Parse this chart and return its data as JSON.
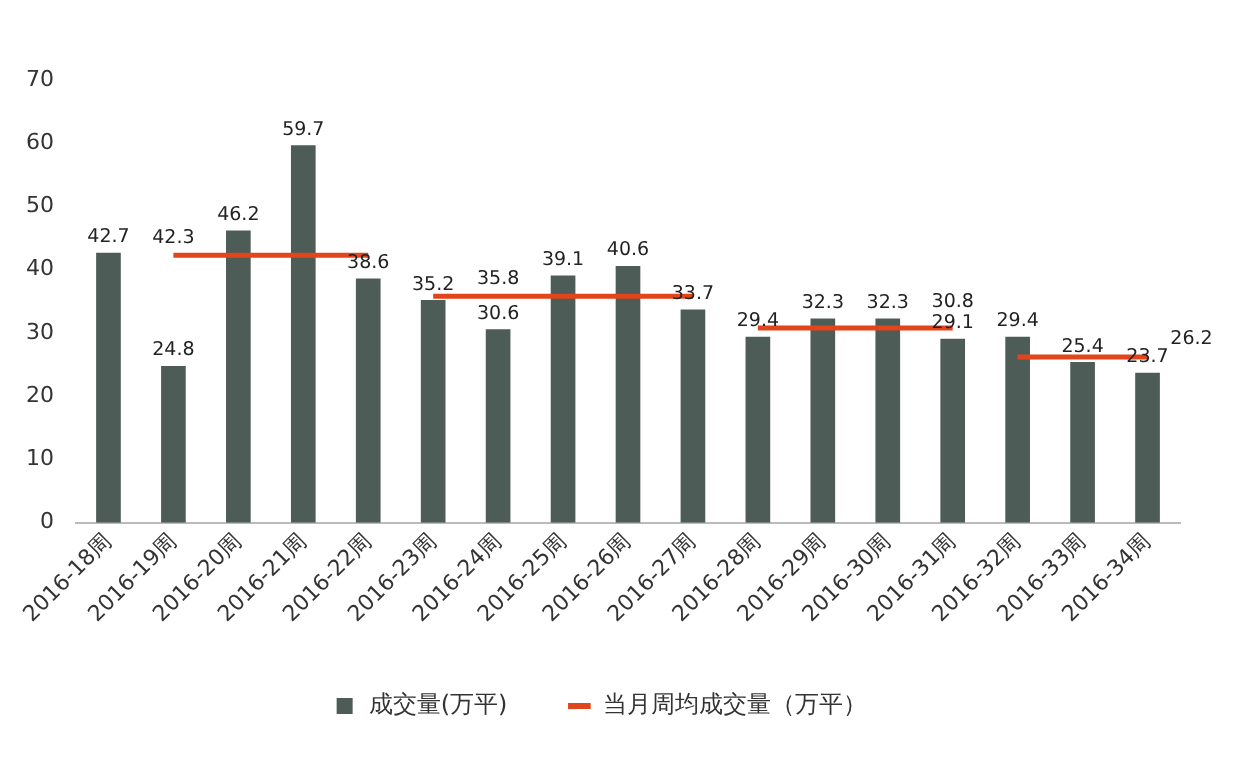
{
  "chart_data": {
    "type": "bar",
    "categories": [
      "2016-18周",
      "2016-19周",
      "2016-20周",
      "2016-21周",
      "2016-22周",
      "2016-23周",
      "2016-24周",
      "2016-25周",
      "2016-26周",
      "2016-27周",
      "2016-28周",
      "2016-29周",
      "2016-30周",
      "2016-31周",
      "2016-32周",
      "2016-33周",
      "2016-34周"
    ],
    "series": [
      {
        "name": "成交量(万平)",
        "color": "#4e5c58",
        "values": [
          42.7,
          24.8,
          46.2,
          59.7,
          38.6,
          35.2,
          30.6,
          39.1,
          40.6,
          33.7,
          29.4,
          32.3,
          32.3,
          29.1,
          29.4,
          25.4,
          23.7
        ],
        "value_labels": [
          "42.7",
          "24.8",
          "46.2",
          "59.7",
          "38.6",
          "35.2",
          "30.6",
          "39.1",
          "40.6",
          "33.7",
          "29.4",
          "32.3",
          "32.3",
          "29.1",
          "29.4",
          "25.4",
          "23.7"
        ]
      },
      {
        "name": "当月周均成交量（万平）",
        "type": "line",
        "color": "#e2451c",
        "values": [
          null,
          42.3,
          42.3,
          42.3,
          42.3,
          35.8,
          35.8,
          35.8,
          35.8,
          35.8,
          30.8,
          30.8,
          30.8,
          30.8,
          26.2,
          26.2,
          26.2
        ],
        "value_labels": [
          null,
          "42.3",
          null,
          null,
          null,
          null,
          "35.8",
          null,
          null,
          null,
          null,
          null,
          null,
          "30.8",
          null,
          null,
          "26.2"
        ]
      }
    ],
    "ylim": [
      0,
      70
    ],
    "yticks": [
      0,
      10,
      20,
      30,
      40,
      50,
      60,
      70
    ],
    "grid": false,
    "legend": "bottom",
    "marker": "none"
  }
}
